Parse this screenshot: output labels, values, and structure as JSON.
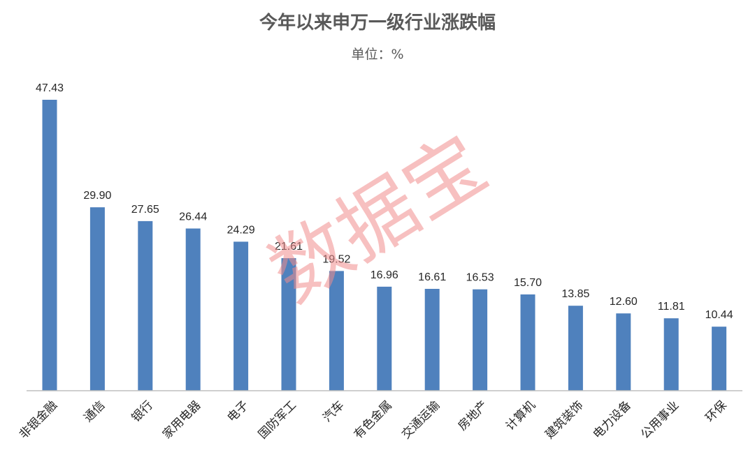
{
  "chart_data": {
    "type": "bar",
    "title": "今年以来申万一级行业涨跌幅",
    "subtitle": "单位：%",
    "categories": [
      "非银金融",
      "通信",
      "银行",
      "家用电器",
      "电子",
      "国防军工",
      "汽车",
      "有色金属",
      "交通运输",
      "房地产",
      "计算机",
      "建筑装饰",
      "电力设备",
      "公用事业",
      "环保"
    ],
    "values": [
      47.43,
      29.9,
      27.65,
      26.44,
      24.29,
      21.61,
      19.52,
      16.96,
      16.61,
      16.53,
      15.7,
      13.85,
      12.6,
      11.81,
      10.44
    ],
    "value_labels": [
      "47.43",
      "29.90",
      "27.65",
      "26.44",
      "24.29",
      "21.61",
      "19.52",
      "16.96",
      "16.61",
      "16.53",
      "15.70",
      "13.85",
      "12.60",
      "11.81",
      "10.44"
    ],
    "xlabel": "",
    "ylabel": "",
    "ylim": [
      0,
      47.43
    ],
    "grid": false,
    "legend": "none",
    "bar_color": "#4f81bd",
    "axis_color": "#bfbfbf",
    "watermark": "数据宝",
    "watermark_color": "#f08c8c"
  }
}
